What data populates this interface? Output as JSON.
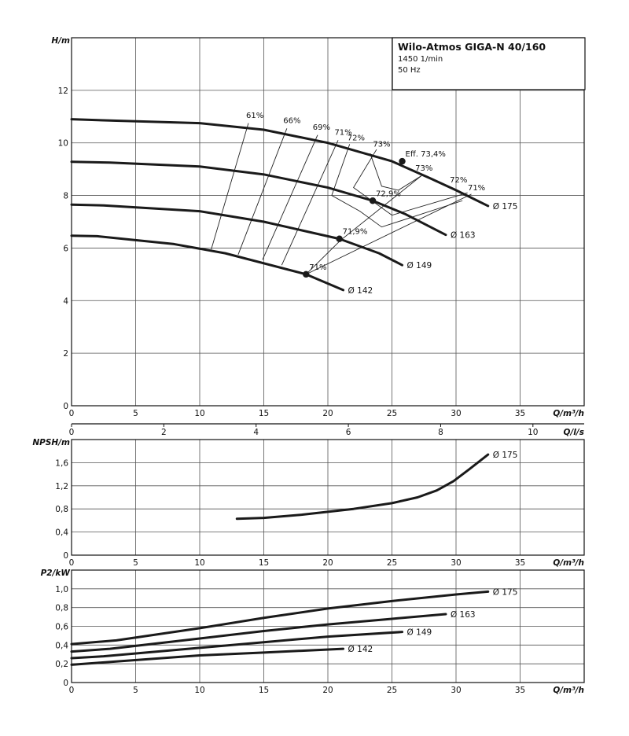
{
  "chart_data": [
    {
      "type": "line",
      "panel": "head",
      "title": "Wilo-Atmos GIGA-N 40/160",
      "subtitle_lines": [
        "1450 1/min",
        "50 Hz"
      ],
      "ylabel": "H/m",
      "xlabel": "Q/m³/h",
      "xlim": [
        0,
        40
      ],
      "ylim": [
        0,
        14
      ],
      "xticks": [
        0,
        5,
        10,
        15,
        20,
        25,
        30,
        35
      ],
      "yticks": [
        0,
        2,
        4,
        6,
        8,
        10,
        12
      ],
      "x_ticklabels": [
        "0",
        "5",
        "10",
        "15",
        "20",
        "25",
        "30",
        "35"
      ],
      "y_ticklabels": [
        "0",
        "2",
        "4",
        "6",
        "8",
        "10",
        "12"
      ],
      "secondary_x": {
        "label": "Q/l/s",
        "lim": [
          0,
          11.111
        ],
        "ticks": [
          0,
          2,
          4,
          6,
          8,
          10
        ],
        "ticklabels": [
          "0",
          "2",
          "4",
          "6",
          "8",
          "10"
        ]
      },
      "grid": true,
      "series": [
        {
          "name": "Ø 175",
          "x": [
            0,
            3,
            10,
            15,
            20,
            25,
            28,
            30,
            32.5
          ],
          "y": [
            10.9,
            10.85,
            10.75,
            10.5,
            10.0,
            9.3,
            8.65,
            8.2,
            7.6
          ]
        },
        {
          "name": "Ø 163",
          "x": [
            0,
            3,
            10,
            15,
            20,
            23.5,
            26,
            29.2
          ],
          "y": [
            9.28,
            9.25,
            9.1,
            8.8,
            8.3,
            7.8,
            7.3,
            6.5
          ]
        },
        {
          "name": "Ø 149",
          "x": [
            0,
            2.5,
            10,
            15,
            20.9,
            24,
            25.8
          ],
          "y": [
            7.65,
            7.62,
            7.4,
            7.0,
            6.35,
            5.8,
            5.35
          ]
        },
        {
          "name": "Ø 142",
          "x": [
            0,
            2,
            8,
            12,
            18.3,
            21.2
          ],
          "y": [
            6.47,
            6.45,
            6.15,
            5.8,
            5.0,
            4.4
          ]
        }
      ],
      "bep_points": [
        {
          "x": 25.8,
          "y": 9.3,
          "label": "Eff. 73,4%"
        },
        {
          "x": 23.5,
          "y": 7.8,
          "label": "72,9%"
        },
        {
          "x": 20.9,
          "y": 6.35,
          "label": "71,9%"
        },
        {
          "x": 18.3,
          "y": 5.0,
          "label": "71%"
        }
      ],
      "efficiency_labels": [
        {
          "text": "61%",
          "x": 14.3,
          "y": 10.95
        },
        {
          "text": "66%",
          "x": 17.2,
          "y": 10.75
        },
        {
          "text": "69%",
          "x": 19.5,
          "y": 10.5
        },
        {
          "text": "71%",
          "x": 21.2,
          "y": 10.3
        },
        {
          "text": "72%",
          "x": 22.2,
          "y": 10.1
        },
        {
          "text": "73%",
          "x": 24.2,
          "y": 9.85
        },
        {
          "text": "73%",
          "x": 27.5,
          "y": 8.95
        },
        {
          "text": "72%",
          "x": 30.2,
          "y": 8.5
        },
        {
          "text": "71%",
          "x": 31.6,
          "y": 8.2
        }
      ],
      "efficiency_lines": [
        {
          "x": [
            13.8,
            10.9
          ],
          "y": [
            10.75,
            5.95
          ]
        },
        {
          "x": [
            16.8,
            13.0
          ],
          "y": [
            10.55,
            5.75
          ]
        },
        {
          "x": [
            19.2,
            14.9
          ],
          "y": [
            10.3,
            5.55
          ]
        },
        {
          "x": [
            20.8,
            16.4
          ],
          "y": [
            10.1,
            5.35
          ]
        },
        {
          "x": [
            21.7,
            20.3,
            22.5,
            24.2,
            30.5
          ],
          "y": [
            9.95,
            8.0,
            7.4,
            6.8,
            7.8
          ]
        },
        {
          "x": [
            23.8,
            22.0,
            23.0,
            25.0,
            30.9
          ],
          "y": [
            9.75,
            8.3,
            7.95,
            7.25,
            8.1
          ]
        },
        {
          "x": [
            27.3,
            21.0,
            18.3,
            31.2
          ],
          "y": [
            8.75,
            6.3,
            5.0,
            8.05
          ]
        },
        {
          "x": [
            23.3,
            24.2,
            25.5,
            27.3
          ],
          "y": [
            9.6,
            8.35,
            8.2,
            8.75
          ]
        }
      ]
    },
    {
      "type": "line",
      "panel": "npsh",
      "ylabel": "NPSH/m",
      "xlabel": "Q/m³/h",
      "xlim": [
        0,
        40
      ],
      "ylim": [
        0,
        2.0
      ],
      "xticks": [
        0,
        5,
        10,
        15,
        20,
        25,
        30,
        35
      ],
      "yticks": [
        0,
        0.4,
        0.8,
        1.2,
        1.6
      ],
      "x_ticklabels": [
        "0",
        "5",
        "10",
        "15",
        "20",
        "25",
        "30",
        "35"
      ],
      "y_ticklabels": [
        "0",
        "0,4",
        "0,8",
        "1,2",
        "1,6"
      ],
      "grid": true,
      "series": [
        {
          "name": "Ø 175",
          "x": [
            12.9,
            15,
            18,
            20,
            22,
            25,
            27,
            28.5,
            29.8,
            31,
            32.5
          ],
          "y": [
            0.63,
            0.645,
            0.7,
            0.75,
            0.8,
            0.9,
            1.0,
            1.12,
            1.28,
            1.48,
            1.74
          ]
        }
      ]
    },
    {
      "type": "line",
      "panel": "power",
      "ylabel": "P2/kW",
      "xlabel": "Q/m³/h",
      "xlim": [
        0,
        40
      ],
      "ylim": [
        0,
        1.2
      ],
      "xticks": [
        0,
        5,
        10,
        15,
        20,
        25,
        30,
        35
      ],
      "yticks": [
        0,
        0.2,
        0.4,
        0.6,
        0.8,
        1.0
      ],
      "x_ticklabels": [
        "0",
        "5",
        "10",
        "15",
        "20",
        "25",
        "30",
        "35"
      ],
      "y_ticklabels": [
        "0",
        "0,2",
        "0,4",
        "0,6",
        "0,8",
        "1,0"
      ],
      "grid": true,
      "series": [
        {
          "name": "Ø 175",
          "x": [
            0,
            3.5,
            10,
            15,
            20,
            25,
            30,
            32.5
          ],
          "y": [
            0.41,
            0.45,
            0.58,
            0.69,
            0.79,
            0.87,
            0.94,
            0.97
          ]
        },
        {
          "name": "Ø 163",
          "x": [
            0,
            3,
            10,
            15,
            20,
            25,
            29.2
          ],
          "y": [
            0.33,
            0.36,
            0.47,
            0.55,
            0.62,
            0.68,
            0.73
          ]
        },
        {
          "name": "Ø 149",
          "x": [
            0,
            2.5,
            10,
            15,
            20,
            25.8
          ],
          "y": [
            0.26,
            0.28,
            0.37,
            0.43,
            0.49,
            0.54
          ]
        },
        {
          "name": "Ø 142",
          "x": [
            0,
            2,
            10,
            15,
            21.2
          ],
          "y": [
            0.19,
            0.21,
            0.29,
            0.32,
            0.36
          ]
        }
      ]
    }
  ]
}
